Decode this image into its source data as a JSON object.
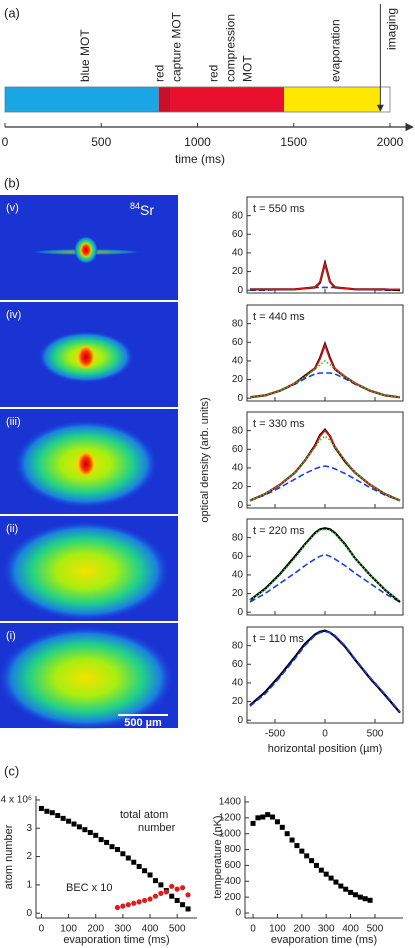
{
  "panels": [
    "(a)",
    "(b)",
    "(c)"
  ],
  "images": {
    "labels": [
      "(v)",
      "(iv)",
      "(iii)",
      "(ii)",
      "(i)"
    ],
    "isotope": "84",
    "element": "Sr",
    "scale_bar": "500 µm"
  },
  "chart_data": [
    {
      "type": "timeline",
      "xlim": [
        0,
        2000
      ],
      "xticks": [
        0,
        500,
        1000,
        1500,
        2000
      ],
      "xlabel": "time (ms)",
      "segments": [
        {
          "label": [
            "blue MOT"
          ],
          "value": 800,
          "color": "#1aa6e4"
        },
        {
          "label": [
            "red",
            "capture MOT"
          ],
          "value": 60,
          "color": "#c8102a"
        },
        {
          "label": [
            "red",
            "compression",
            "MOT"
          ],
          "value": 590,
          "color": "#e8102e"
        },
        {
          "label": [
            "evaporation"
          ],
          "value": 500,
          "color": "#ffe800"
        }
      ],
      "annotations": [
        {
          "text": "imaging",
          "x": 1950
        }
      ]
    },
    {
      "type": "line",
      "title": "t = 550 ms",
      "xlim": [
        -780,
        780
      ],
      "ylim": [
        -3,
        100
      ],
      "xticks": [
        -500,
        0,
        500
      ],
      "yticks": [
        0,
        20,
        40,
        60,
        80
      ],
      "x": [
        -750,
        -600,
        -450,
        -300,
        -200,
        -100,
        -50,
        0,
        50,
        100,
        200,
        300,
        450,
        600,
        750
      ],
      "series": [
        {
          "color": "#1a3fe0",
          "dash": "dashed",
          "values": [
            0,
            0,
            1,
            1,
            2,
            3,
            3,
            3,
            3,
            3,
            2,
            1,
            1,
            0,
            0
          ]
        },
        {
          "color": "#000000",
          "dash": "solid",
          "values": [
            1,
            1,
            1,
            1,
            2,
            3,
            8,
            29,
            9,
            3,
            2,
            1,
            1,
            1,
            0
          ]
        },
        {
          "color": "#e01010",
          "dash": "solid",
          "values": [
            1,
            1,
            1,
            1,
            2,
            3,
            9,
            28,
            9,
            3,
            2,
            1,
            1,
            1,
            1
          ]
        }
      ]
    },
    {
      "type": "line",
      "title": "t = 440 ms",
      "xlim": [
        -780,
        780
      ],
      "ylim": [
        -3,
        100
      ],
      "xticks": [
        -500,
        0,
        500
      ],
      "yticks": [
        0,
        20,
        40,
        60,
        80
      ],
      "x": [
        -750,
        -600,
        -450,
        -300,
        -200,
        -100,
        -50,
        0,
        50,
        100,
        200,
        300,
        450,
        600,
        750
      ],
      "series": [
        {
          "color": "#1a3fe0",
          "dash": "dashed",
          "values": [
            1,
            3,
            8,
            15,
            21,
            26,
            27,
            27,
            27,
            26,
            21,
            15,
            8,
            3,
            1
          ]
        },
        {
          "color": "#000000",
          "dash": "solid",
          "values": [
            1,
            3,
            8,
            16,
            24,
            32,
            43,
            58,
            43,
            31,
            23,
            16,
            8,
            3,
            1
          ]
        },
        {
          "color": "#e01010",
          "dash": "solid",
          "values": [
            1,
            3,
            8,
            16,
            23,
            32,
            42,
            57,
            42,
            32,
            23,
            16,
            8,
            3,
            1
          ]
        },
        {
          "color": "#22cc22",
          "dash": "dotted",
          "values": [
            1,
            3,
            8,
            16,
            23,
            31,
            36,
            40,
            36,
            31,
            23,
            16,
            8,
            3,
            1
          ]
        }
      ]
    },
    {
      "type": "line",
      "title": "t = 330 ms",
      "xlim": [
        -780,
        780
      ],
      "ylim": [
        -3,
        100
      ],
      "xticks": [
        -500,
        0,
        500
      ],
      "yticks": [
        0,
        20,
        40,
        60,
        80
      ],
      "ylabel": "optical density (arb. units)",
      "x": [
        -750,
        -600,
        -450,
        -300,
        -200,
        -100,
        -50,
        0,
        50,
        100,
        200,
        300,
        450,
        600,
        750
      ],
      "series": [
        {
          "color": "#1a3fe0",
          "dash": "dashed",
          "values": [
            5,
            11,
            19,
            28,
            34,
            39,
            41,
            42,
            41,
            39,
            34,
            28,
            19,
            11,
            5
          ]
        },
        {
          "color": "#000000",
          "dash": "solid",
          "values": [
            5,
            12,
            22,
            35,
            48,
            64,
            75,
            81,
            74,
            62,
            47,
            35,
            22,
            12,
            5
          ]
        },
        {
          "color": "#e01010",
          "dash": "solid",
          "values": [
            5,
            12,
            22,
            35,
            48,
            63,
            74,
            80,
            74,
            63,
            48,
            35,
            22,
            12,
            5
          ]
        },
        {
          "color": "#22cc22",
          "dash": "dotted",
          "values": [
            5,
            12,
            22,
            35,
            48,
            62,
            70,
            74,
            70,
            62,
            48,
            35,
            22,
            12,
            5
          ]
        }
      ]
    },
    {
      "type": "line",
      "title": "t = 220 ms",
      "xlim": [
        -780,
        780
      ],
      "ylim": [
        -3,
        100
      ],
      "xticks": [
        -500,
        0,
        500
      ],
      "yticks": [
        0,
        20,
        40,
        60,
        80
      ],
      "x": [
        -750,
        -600,
        -450,
        -300,
        -200,
        -100,
        -50,
        0,
        50,
        100,
        200,
        300,
        450,
        600,
        750
      ],
      "series": [
        {
          "color": "#1a3fe0",
          "dash": "dashed",
          "values": [
            11,
            20,
            31,
            42,
            50,
            57,
            60,
            62,
            60,
            57,
            50,
            42,
            31,
            20,
            11
          ]
        },
        {
          "color": "#000000",
          "dash": "solid",
          "values": [
            13,
            25,
            41,
            60,
            73,
            85,
            89,
            90,
            89,
            85,
            73,
            58,
            40,
            24,
            11
          ]
        },
        {
          "color": "#22cc22",
          "dash": "dotted",
          "values": [
            13,
            24,
            40,
            58,
            72,
            84,
            88,
            89,
            88,
            84,
            72,
            58,
            40,
            24,
            12
          ]
        }
      ]
    },
    {
      "type": "line",
      "title": "t = 110 ms",
      "xlim": [
        -780,
        780
      ],
      "ylim": [
        -3,
        100
      ],
      "xticks": [
        -500,
        0,
        500
      ],
      "yticks": [
        0,
        20,
        40,
        60,
        80
      ],
      "xlabel": "horizontal position (µm)",
      "x": [
        -750,
        -600,
        -450,
        -300,
        -200,
        -100,
        -50,
        0,
        50,
        100,
        200,
        300,
        450,
        600,
        750
      ],
      "series": [
        {
          "color": "#000000",
          "dash": "solid",
          "values": [
            16,
            30,
            48,
            68,
            82,
            92,
            95,
            96,
            94,
            90,
            79,
            65,
            45,
            27,
            8
          ]
        },
        {
          "color": "#1a3fe0",
          "dash": "dashed",
          "values": [
            15,
            28,
            46,
            66,
            80,
            91,
            94,
            95,
            94,
            91,
            80,
            66,
            46,
            28,
            9
          ]
        }
      ]
    },
    {
      "type": "scatter",
      "xlabel": "evaporation time (ms)",
      "ylabel": "atom number",
      "xlim": [
        -20,
        573
      ],
      "ylim": [
        -0.17,
        4.14
      ],
      "xticks": [
        0,
        100,
        200,
        300,
        400,
        500
      ],
      "yticks": [
        0,
        1,
        2,
        3,
        {
          "value": 4,
          "label": "4 x 10⁶"
        }
      ],
      "series": [
        {
          "name": "total atom number",
          "color": "#000000",
          "marker": "square",
          "x": [
            0,
            20,
            40,
            60,
            80,
            100,
            120,
            140,
            160,
            180,
            200,
            220,
            240,
            260,
            280,
            300,
            320,
            340,
            360,
            380,
            400,
            420,
            440,
            460,
            480,
            500,
            520,
            540
          ],
          "values": [
            3.7,
            3.6,
            3.55,
            3.45,
            3.35,
            3.25,
            3.15,
            3.05,
            2.95,
            2.85,
            2.75,
            2.6,
            2.5,
            2.35,
            2.25,
            2.1,
            1.95,
            1.8,
            1.65,
            1.5,
            1.35,
            1.15,
            1.0,
            0.8,
            0.6,
            0.45,
            0.3,
            0.15
          ]
        },
        {
          "name": "BEC x 10",
          "color": "#e81818",
          "marker": "circle",
          "x": [
            280,
            300,
            320,
            340,
            360,
            380,
            400,
            420,
            440,
            460,
            480,
            500,
            520,
            540
          ],
          "values": [
            0.2,
            0.25,
            0.3,
            0.35,
            0.4,
            0.45,
            0.5,
            0.6,
            0.7,
            0.75,
            0.95,
            0.85,
            0.9,
            0.65
          ]
        }
      ]
    },
    {
      "type": "scatter",
      "xlabel": "evaporation time (ms)",
      "ylabel": "temperature (nK)",
      "xlim": [
        -33,
        615
      ],
      "ylim": [
        -63,
        1475
      ],
      "xticks": [
        0,
        100,
        200,
        300,
        400,
        500
      ],
      "yticks": [
        0,
        200,
        400,
        600,
        800,
        1000,
        1200,
        1400
      ],
      "series": [
        {
          "color": "#000000",
          "marker": "square",
          "x": [
            0,
            20,
            40,
            60,
            80,
            100,
            120,
            140,
            160,
            180,
            200,
            220,
            240,
            260,
            280,
            300,
            320,
            340,
            360,
            380,
            400,
            420,
            440,
            460,
            480
          ],
          "values": [
            1130,
            1200,
            1210,
            1240,
            1210,
            1150,
            1080,
            1000,
            920,
            850,
            780,
            720,
            660,
            600,
            540,
            490,
            440,
            390,
            340,
            300,
            260,
            230,
            200,
            180,
            160
          ]
        }
      ]
    }
  ]
}
